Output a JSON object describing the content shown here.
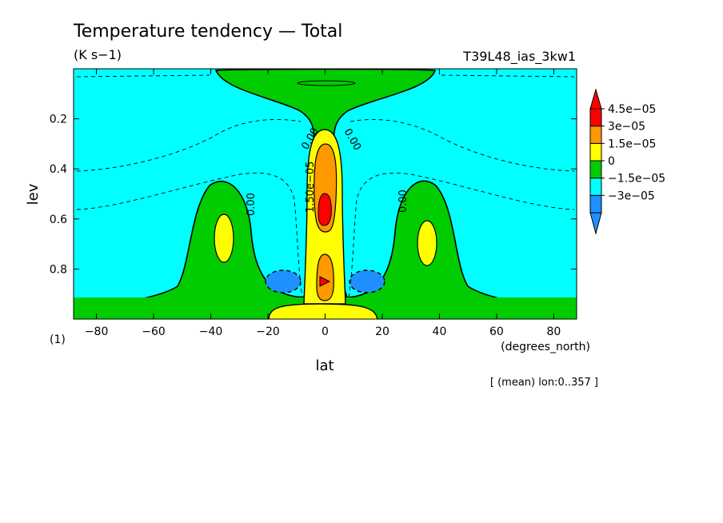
{
  "chart_data": {
    "type": "contour",
    "title": "Temperature tendency — Total",
    "units": "(K s−1)",
    "run_label": "T39L48_ias_3kw1",
    "xlabel": "lat",
    "x_units": "(degrees_north)",
    "ylabel": "lev",
    "y_units": "(1)",
    "footnote": "[ (mean) lon:0..357 ]",
    "xlim": [
      -88,
      88
    ],
    "ylim": [
      1.0,
      0.0
    ],
    "x_ticks": [
      -80,
      -60,
      -40,
      -20,
      0,
      20,
      40,
      60,
      80
    ],
    "y_ticks": [
      0.2,
      0.4,
      0.6,
      0.8
    ],
    "x_tick_labels": [
      "−80",
      "−60",
      "−40",
      "−20",
      "0",
      "20",
      "40",
      "60",
      "80"
    ],
    "y_tick_labels": [
      "0.2",
      "0.4",
      "0.6",
      "0.8"
    ],
    "contour_labels": [
      "0.00",
      "0.00",
      "0.00",
      "0.00",
      "1.50e−05"
    ],
    "colorbar": {
      "levels": [
        -4.5e-05,
        -3e-05,
        -1.5e-05,
        0,
        1.5e-05,
        3e-05,
        4.5e-05,
        6e-05
      ],
      "labels": [
        "4.5e−05",
        "3e−05",
        "1.5e−05",
        "0",
        "−1.5e−05",
        "−3e−05"
      ],
      "colors": [
        "#1e90ff",
        "#1e90ff",
        "#00ffff",
        "#00cc00",
        "#ffff00",
        "#ff9900",
        "#ff0000",
        "#ff0000"
      ]
    }
  }
}
